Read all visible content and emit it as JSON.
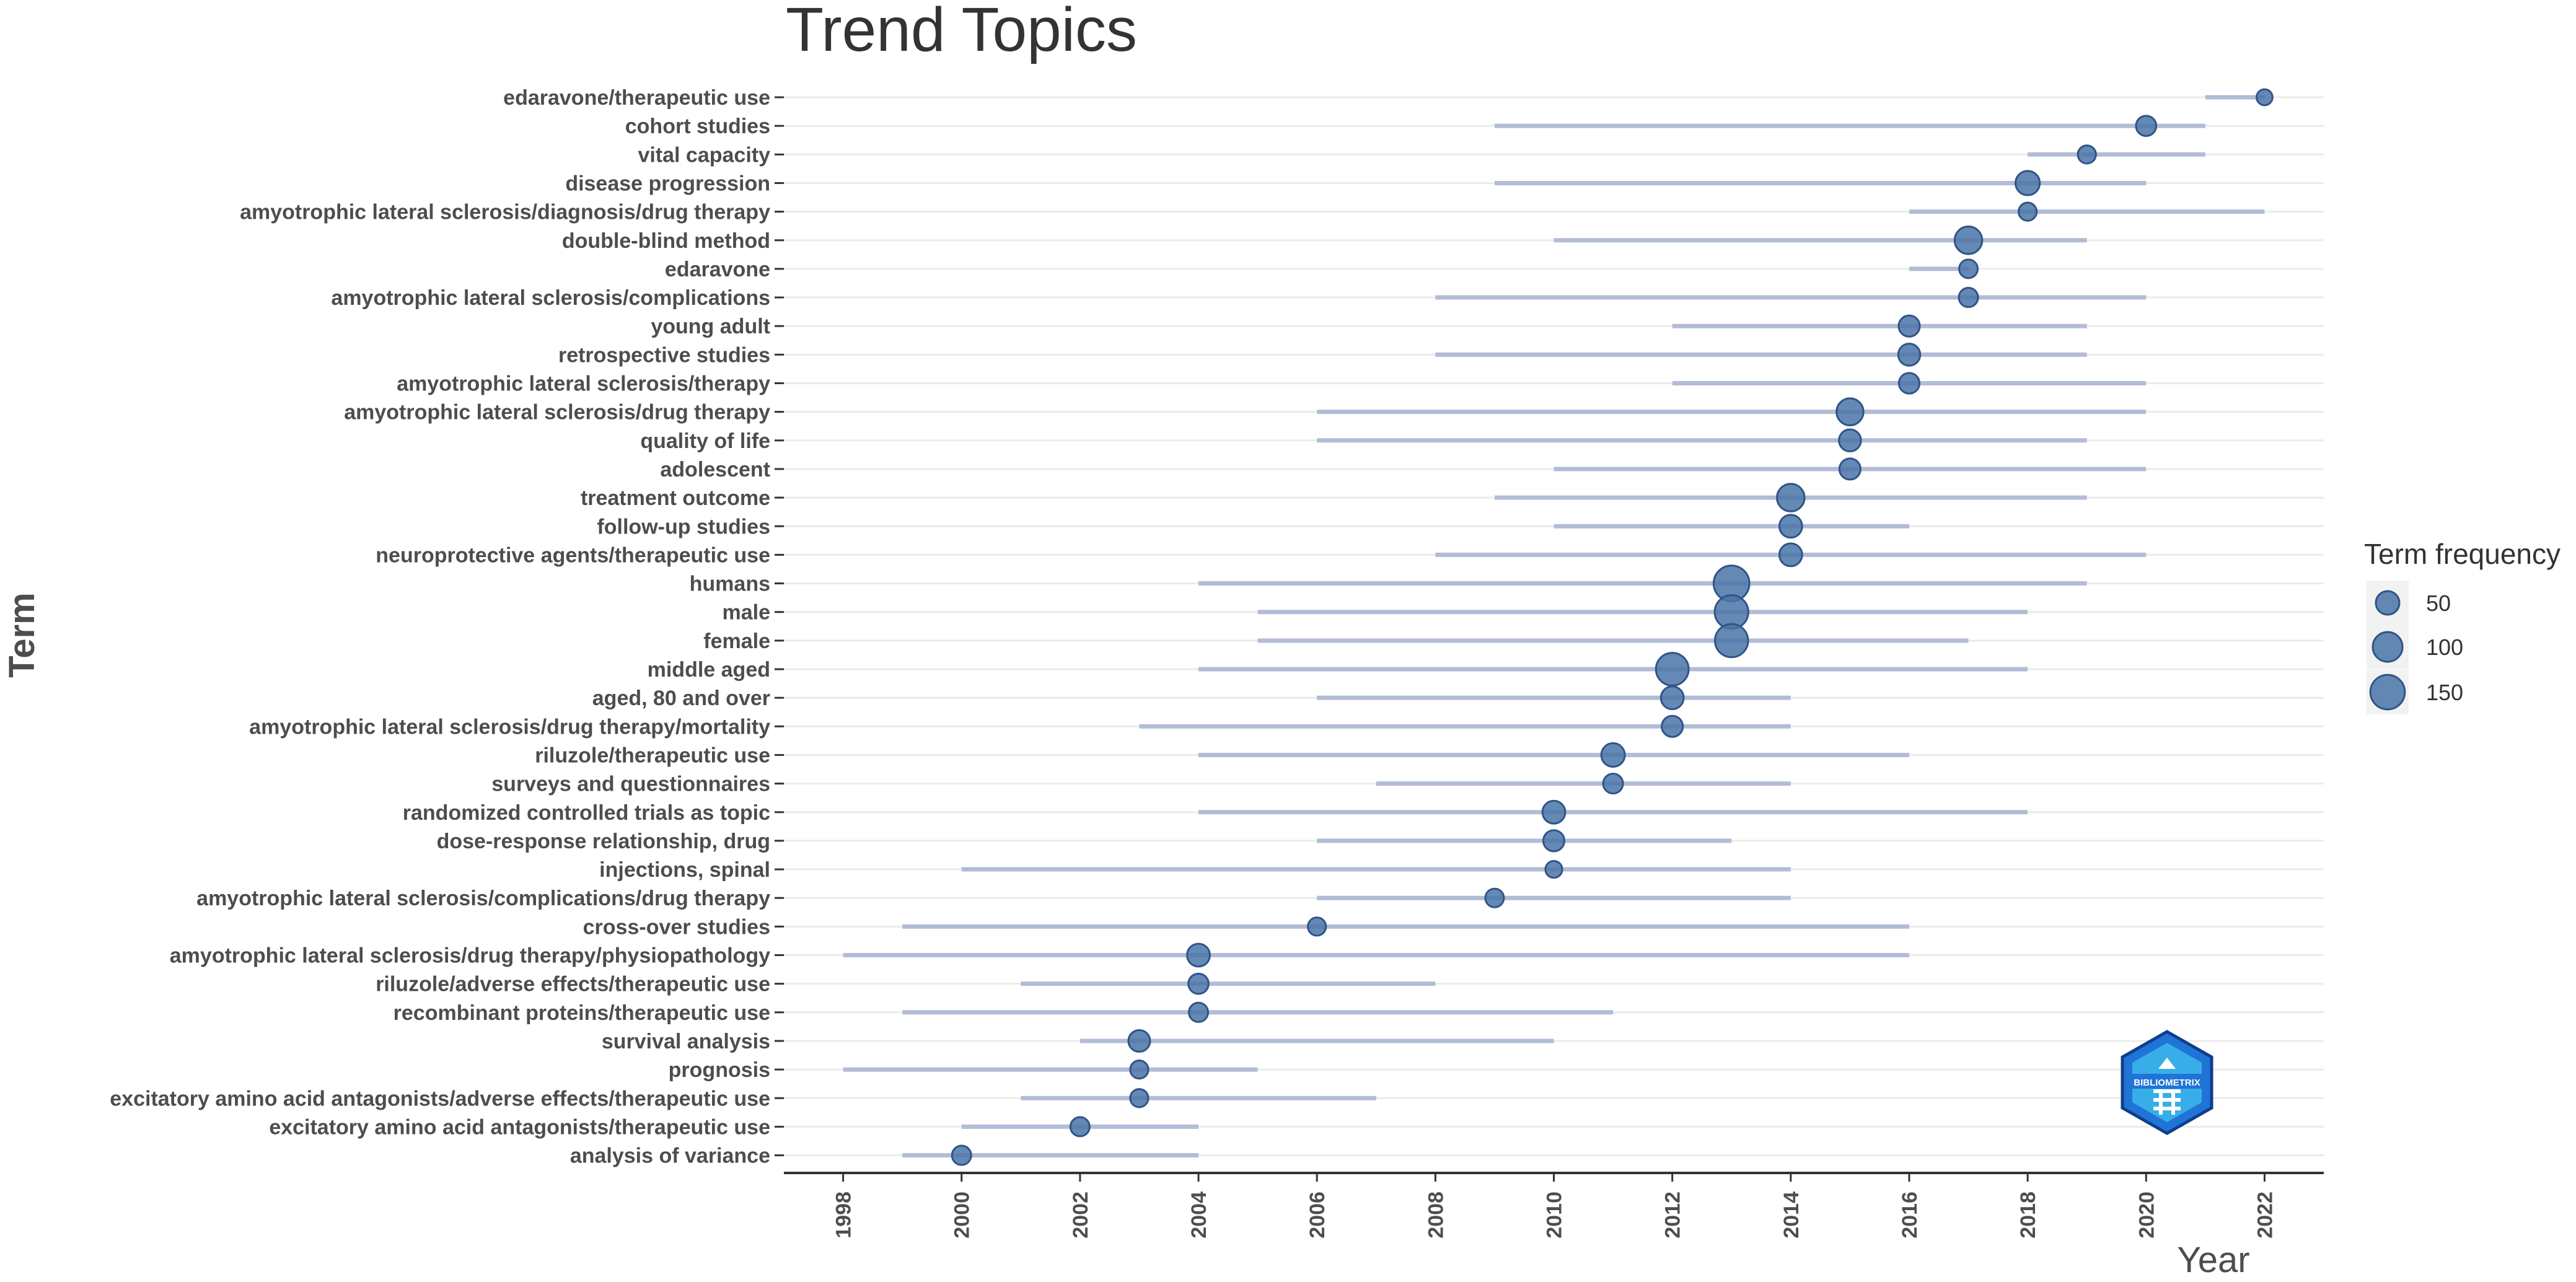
{
  "chart_data": {
    "type": "scatter",
    "title": "Trend Topics",
    "xlabel": "Year",
    "ylabel": "Term",
    "xlim": [
      1997,
      2023
    ],
    "x_ticks": [
      1998,
      2000,
      2002,
      2004,
      2006,
      2008,
      2010,
      2012,
      2014,
      2016,
      2018,
      2020,
      2022
    ],
    "legend": {
      "title": "Term frequency",
      "position": "right",
      "entries": [
        {
          "label": "50",
          "value": 50
        },
        {
          "label": "100",
          "value": 100
        },
        {
          "label": "150",
          "value": 150
        }
      ]
    },
    "terms": [
      {
        "term": "edaravone/therapeutic use",
        "year_q1": 2021,
        "year_med": 2022,
        "year_q3": 2022,
        "freq": 12
      },
      {
        "term": "cohort studies",
        "year_q1": 2009,
        "year_med": 2020,
        "year_q3": 2021,
        "freq": 30
      },
      {
        "term": "vital capacity",
        "year_q1": 2018,
        "year_med": 2019,
        "year_q3": 2021,
        "freq": 20
      },
      {
        "term": "disease progression",
        "year_q1": 2009,
        "year_med": 2018,
        "year_q3": 2020,
        "freq": 55
      },
      {
        "term": "amyotrophic lateral sclerosis/diagnosis/drug therapy",
        "year_q1": 2016,
        "year_med": 2018,
        "year_q3": 2022,
        "freq": 20
      },
      {
        "term": "double-blind method",
        "year_q1": 2010,
        "year_med": 2017,
        "year_q3": 2019,
        "freq": 80
      },
      {
        "term": "edaravone",
        "year_q1": 2016,
        "year_med": 2017,
        "year_q3": 2017,
        "freq": 22
      },
      {
        "term": "amyotrophic lateral sclerosis/complications",
        "year_q1": 2008,
        "year_med": 2017,
        "year_q3": 2020,
        "freq": 25
      },
      {
        "term": "young adult",
        "year_q1": 2012,
        "year_med": 2016,
        "year_q3": 2019,
        "freq": 35
      },
      {
        "term": "retrospective studies",
        "year_q1": 2008,
        "year_med": 2016,
        "year_q3": 2019,
        "freq": 40
      },
      {
        "term": "amyotrophic lateral sclerosis/therapy",
        "year_q1": 2012,
        "year_med": 2016,
        "year_q3": 2020,
        "freq": 32
      },
      {
        "term": "amyotrophic lateral sclerosis/drug therapy",
        "year_q1": 2006,
        "year_med": 2015,
        "year_q3": 2020,
        "freq": 75
      },
      {
        "term": "quality of life",
        "year_q1": 2006,
        "year_med": 2015,
        "year_q3": 2019,
        "freq": 40
      },
      {
        "term": "adolescent",
        "year_q1": 2010,
        "year_med": 2015,
        "year_q3": 2020,
        "freq": 35
      },
      {
        "term": "treatment outcome",
        "year_q1": 2009,
        "year_med": 2014,
        "year_q3": 2019,
        "freq": 80
      },
      {
        "term": "follow-up studies",
        "year_q1": 2010,
        "year_med": 2014,
        "year_q3": 2016,
        "freq": 45
      },
      {
        "term": "neuroprotective agents/therapeutic use",
        "year_q1": 2008,
        "year_med": 2014,
        "year_q3": 2020,
        "freq": 45
      },
      {
        "term": "humans",
        "year_q1": 2004,
        "year_med": 2013,
        "year_q3": 2019,
        "freq": 165
      },
      {
        "term": "male",
        "year_q1": 2005,
        "year_med": 2013,
        "year_q3": 2018,
        "freq": 140
      },
      {
        "term": "female",
        "year_q1": 2005,
        "year_med": 2013,
        "year_q3": 2017,
        "freq": 135
      },
      {
        "term": "middle aged",
        "year_q1": 2004,
        "year_med": 2012,
        "year_q3": 2018,
        "freq": 130
      },
      {
        "term": "aged, 80 and over",
        "year_q1": 2006,
        "year_med": 2012,
        "year_q3": 2014,
        "freq": 45
      },
      {
        "term": "amyotrophic lateral sclerosis/drug therapy/mortality",
        "year_q1": 2003,
        "year_med": 2012,
        "year_q3": 2014,
        "freq": 35
      },
      {
        "term": "riluzole/therapeutic use",
        "year_q1": 2004,
        "year_med": 2011,
        "year_q3": 2016,
        "freq": 50
      },
      {
        "term": "surveys and questionnaires",
        "year_q1": 2007,
        "year_med": 2011,
        "year_q3": 2014,
        "freq": 28
      },
      {
        "term": "randomized controlled trials as topic",
        "year_q1": 2004,
        "year_med": 2010,
        "year_q3": 2018,
        "freq": 45
      },
      {
        "term": "dose-response relationship, drug",
        "year_q1": 2006,
        "year_med": 2010,
        "year_q3": 2013,
        "freq": 35
      },
      {
        "term": "injections, spinal",
        "year_q1": 2000,
        "year_med": 2010,
        "year_q3": 2014,
        "freq": 15
      },
      {
        "term": "amyotrophic lateral sclerosis/complications/drug therapy",
        "year_q1": 2006,
        "year_med": 2009,
        "year_q3": 2014,
        "freq": 22
      },
      {
        "term": "cross-over studies",
        "year_q1": 1999,
        "year_med": 2006,
        "year_q3": 2016,
        "freq": 20
      },
      {
        "term": "amyotrophic lateral sclerosis/drug therapy/physiopathology",
        "year_q1": 1998,
        "year_med": 2004,
        "year_q3": 2016,
        "freq": 45
      },
      {
        "term": "riluzole/adverse effects/therapeutic use",
        "year_q1": 2001,
        "year_med": 2004,
        "year_q3": 2008,
        "freq": 30
      },
      {
        "term": "recombinant proteins/therapeutic use",
        "year_q1": 1999,
        "year_med": 2004,
        "year_q3": 2011,
        "freq": 25
      },
      {
        "term": "survival analysis",
        "year_q1": 2002,
        "year_med": 2003,
        "year_q3": 2010,
        "freq": 38
      },
      {
        "term": "prognosis",
        "year_q1": 1998,
        "year_med": 2003,
        "year_q3": 2005,
        "freq": 20
      },
      {
        "term": "excitatory amino acid antagonists/adverse effects/therapeutic use",
        "year_q1": 2001,
        "year_med": 2003,
        "year_q3": 2007,
        "freq": 20
      },
      {
        "term": "excitatory amino acid antagonists/therapeutic use",
        "year_q1": 2000,
        "year_med": 2002,
        "year_q3": 2004,
        "freq": 25
      },
      {
        "term": "analysis of variance",
        "year_q1": 1999,
        "year_med": 2000,
        "year_q3": 2004,
        "freq": 25
      }
    ]
  },
  "colors": {
    "point_fill": "#4a74a8",
    "point_stroke": "#2f5486",
    "segment": "#b3bcd6",
    "grid": "#ebebeb",
    "axis": "#333333",
    "legend_bg": "#f2f2f2"
  },
  "logo": {
    "icon": "bibliometrix-logo-icon",
    "text": "BIBLIOMETRIX"
  }
}
